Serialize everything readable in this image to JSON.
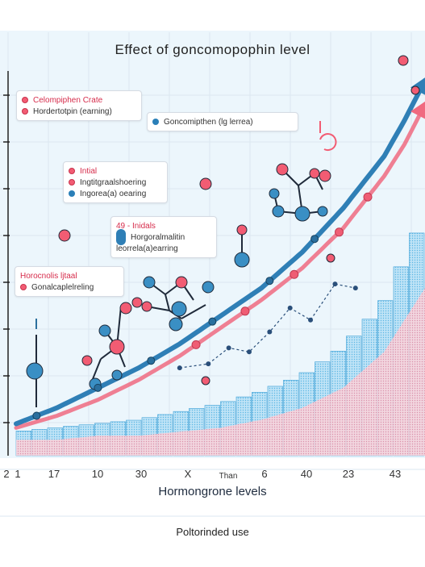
{
  "title": "Effect  of  goncomopophin level",
  "x_axis_label": "Hormongrone levels",
  "footer": "Poltorinded use",
  "legend_boxes": [
    {
      "rows": [
        {
          "marker": "pink-dot",
          "text": "Celompiphen Crate",
          "pink": true
        },
        {
          "marker": "pink-dot",
          "text": "Hordertotpin (earning)"
        }
      ]
    },
    {
      "rows": [
        {
          "marker": "blue-dot",
          "text": "Goncomipthen (lg lerrea)"
        }
      ]
    },
    {
      "rows": [
        {
          "marker": "pink-dot",
          "text": "Intial",
          "pink": true
        },
        {
          "marker": "pink-dot",
          "text": "Ingtitgraalshoering"
        },
        {
          "marker": "blue-dot",
          "text": "Ingorea(a) oearing"
        }
      ]
    },
    {
      "rows": [
        {
          "marker": "none",
          "text": "49 - Inidals",
          "pink": true
        },
        {
          "marker": "capsule",
          "text": "Horgoralmalitin"
        },
        {
          "marker": "none",
          "text": "leorrela(a)earring"
        }
      ]
    },
    {
      "rows": [
        {
          "marker": "none",
          "text": "Horocnolis ljtaal",
          "pink": true
        },
        {
          "marker": "pink-dot",
          "text": "Gonalcaplelreling"
        }
      ]
    }
  ],
  "chart_data": {
    "type": "area",
    "title": "Effect  of  goncomopophin level",
    "xlabel": "Hormongrone levels",
    "ylabel": "",
    "x_tick_labels": [
      "2",
      "1",
      "17",
      "10",
      "30",
      "X",
      "Than",
      "6",
      "40",
      "23",
      "43"
    ],
    "ylim": [
      0,
      100
    ],
    "grid": true,
    "series": [
      {
        "style": "blue-curve-arrow",
        "color": "#2f7fb6",
        "x": [
          0,
          10,
          20,
          30,
          40,
          50,
          60,
          70,
          80,
          90,
          95,
          100
        ],
        "values": [
          8,
          12,
          17,
          22,
          28,
          35,
          42,
          51,
          62,
          75,
          84,
          94
        ]
      },
      {
        "style": "pink-curve-arrow",
        "color": "#f06a80",
        "x": [
          0,
          10,
          20,
          30,
          40,
          50,
          60,
          70,
          80,
          90,
          95,
          100
        ],
        "values": [
          7,
          10,
          14,
          19,
          25,
          32,
          39,
          47,
          57,
          70,
          78,
          88
        ]
      },
      {
        "style": "dashed-markers",
        "color": "#2a4f7a",
        "x": [
          40,
          47,
          52,
          57,
          62,
          67,
          72,
          78,
          83
        ],
        "values": [
          22,
          23,
          27,
          26,
          31,
          37,
          34,
          43,
          42
        ]
      },
      {
        "style": "blue-bars",
        "color": "#4aaee0",
        "x": [
          0,
          10,
          20,
          30,
          40,
          50,
          60,
          70,
          80,
          90,
          100
        ],
        "values": [
          6,
          7,
          8,
          9,
          11,
          13,
          16,
          20,
          27,
          38,
          60
        ]
      },
      {
        "style": "pink-area",
        "color": "#f7a9b8",
        "x": [
          0,
          10,
          20,
          30,
          40,
          50,
          60,
          70,
          80,
          90,
          100
        ],
        "values": [
          4,
          4,
          5,
          5,
          6,
          7,
          9,
          12,
          17,
          26,
          42
        ]
      }
    ]
  }
}
